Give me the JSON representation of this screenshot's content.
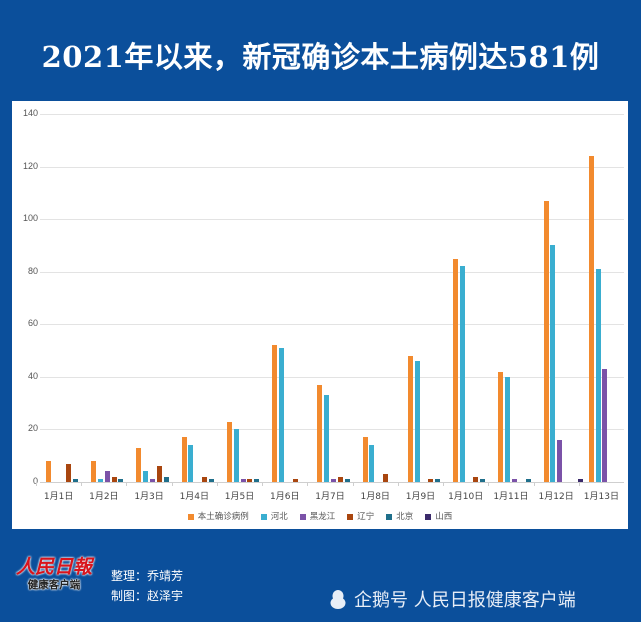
{
  "header": {
    "title": "2021年以来，新冠确诊本土病例达581例"
  },
  "footer": {
    "logo_main": "人民日報",
    "logo_sub": "健康客户端",
    "credit_editor": "整理：乔靖芳",
    "credit_designer": "制图：赵泽宇",
    "watermark": "企鹅号 人民日报健康客户端"
  },
  "colors": {
    "background": "#0b4f9b",
    "panel": "#ffffff"
  },
  "chart_data": {
    "type": "bar",
    "title": "2021年以来，新冠确诊本土病例达581例",
    "xlabel": "",
    "ylabel": "",
    "ylim": [
      0,
      140
    ],
    "yticks": [
      0,
      20,
      40,
      60,
      80,
      100,
      120,
      140
    ],
    "grid": true,
    "legend_position": "bottom",
    "categories": [
      "1月1日",
      "1月2日",
      "1月3日",
      "1月4日",
      "1月5日",
      "1月6日",
      "1月7日",
      "1月8日",
      "1月9日",
      "1月10日",
      "1月11日",
      "1月12日",
      "1月13日"
    ],
    "series": [
      {
        "name": "本土确诊病例",
        "color": "#f28a2e",
        "values": [
          8,
          8,
          13,
          17,
          23,
          52,
          37,
          17,
          48,
          85,
          42,
          107,
          124
        ]
      },
      {
        "name": "河北",
        "color": "#3aaed0",
        "values": [
          0,
          1,
          4,
          14,
          20,
          51,
          33,
          14,
          46,
          82,
          40,
          90,
          81
        ]
      },
      {
        "name": "黑龙江",
        "color": "#7b52a8",
        "values": [
          0,
          4,
          1,
          0,
          1,
          0,
          1,
          0,
          0,
          0,
          1,
          16,
          43
        ]
      },
      {
        "name": "辽宁",
        "color": "#a9460f",
        "values": [
          7,
          2,
          6,
          2,
          1,
          1,
          2,
          3,
          1,
          2,
          0,
          0,
          0
        ]
      },
      {
        "name": "北京",
        "color": "#1f6f8b",
        "values": [
          1,
          1,
          2,
          1,
          1,
          0,
          1,
          0,
          1,
          1,
          1,
          0,
          0
        ]
      },
      {
        "name": "山西",
        "color": "#3b2a6b",
        "values": [
          0,
          0,
          0,
          0,
          0,
          0,
          0,
          0,
          0,
          0,
          0,
          1,
          0
        ]
      }
    ]
  }
}
